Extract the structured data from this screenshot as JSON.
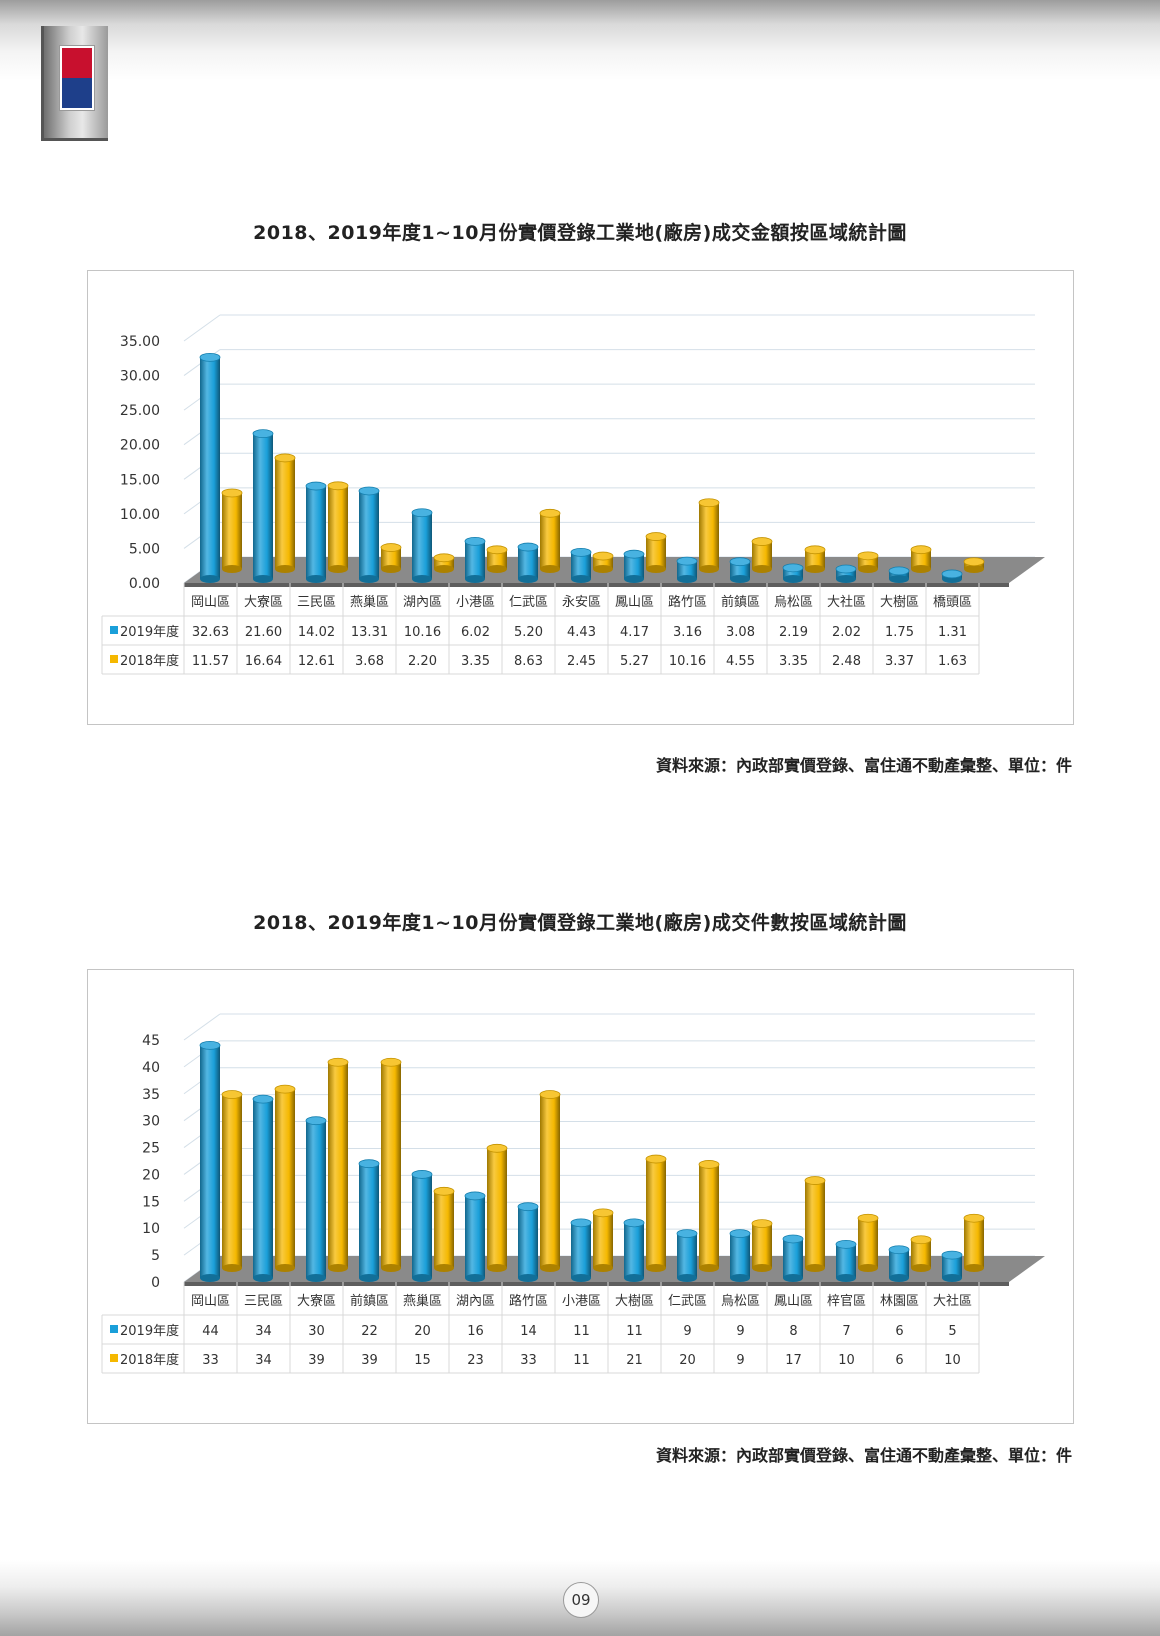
{
  "page_number": "09",
  "charts": [
    {
      "title": "2018、2019年度1~10月份實價登錄工業地(廠房)成交金額按區域統計圖",
      "source": "資料來源：內政部實價登錄、富住通不動產彙整、單位：件"
    },
    {
      "title": "2018、2019年度1~10月份實價登錄工業地(廠房)成交件數按區域統計圖",
      "source": "資料來源：內政部實價登錄、富住通不動產彙整、單位：件"
    }
  ],
  "chart_data": [
    {
      "type": "bar",
      "title": "2018、2019年度1~10月份實價登錄工業地(廠房)成交金額按區域統計圖",
      "categories": [
        "岡山區",
        "大寮區",
        "三民區",
        "燕巢區",
        "湖內區",
        "小港區",
        "仁武區",
        "永安區",
        "鳳山區",
        "路竹區",
        "前鎮區",
        "烏松區",
        "大社區",
        "大樹區",
        "橋頭區"
      ],
      "series": [
        {
          "name": "2019年度",
          "color": "#1a9fd9",
          "values": [
            32.63,
            21.6,
            14.02,
            13.31,
            10.16,
            6.02,
            5.2,
            4.43,
            4.17,
            3.16,
            3.08,
            2.19,
            2.02,
            1.75,
            1.31
          ],
          "labels": [
            "32.63",
            "21.60",
            "14.02",
            "13.31",
            "10.16",
            "6.02",
            "5.20",
            "4.43",
            "4.17",
            "3.16",
            "3.08",
            "2.19",
            "2.02",
            "1.75",
            "1.31"
          ]
        },
        {
          "name": "2018年度",
          "color": "#f5b800",
          "values": [
            11.57,
            16.64,
            12.61,
            3.68,
            2.2,
            3.35,
            8.63,
            2.45,
            5.27,
            10.16,
            4.55,
            3.35,
            2.48,
            3.37,
            1.63
          ],
          "labels": [
            "11.57",
            "16.64",
            "12.61",
            "3.68",
            "2.20",
            "3.35",
            "8.63",
            "2.45",
            "5.27",
            "10.16",
            "4.55",
            "3.35",
            "2.48",
            "3.37",
            "1.63"
          ]
        }
      ],
      "yticks": [
        "0.00",
        "5.00",
        "10.00",
        "15.00",
        "20.00",
        "25.00",
        "30.00",
        "35.00"
      ],
      "ylim": [
        0,
        35
      ],
      "grid": true,
      "legend": "data-table"
    },
    {
      "type": "bar",
      "title": "2018、2019年度1~10月份實價登錄工業地(廠房)成交件數按區域統計圖",
      "categories": [
        "岡山區",
        "三民區",
        "大寮區",
        "前鎮區",
        "燕巢區",
        "湖內區",
        "路竹區",
        "小港區",
        "大樹區",
        "仁武區",
        "烏松區",
        "鳳山區",
        "梓官區",
        "林園區",
        "大社區"
      ],
      "series": [
        {
          "name": "2019年度",
          "color": "#1a9fd9",
          "values": [
            44,
            34,
            30,
            22,
            20,
            16,
            14,
            11,
            11,
            9,
            9,
            8,
            7,
            6,
            5
          ],
          "labels": [
            "44",
            "34",
            "30",
            "22",
            "20",
            "16",
            "14",
            "11",
            "11",
            "9",
            "9",
            "8",
            "7",
            "6",
            "5"
          ]
        },
        {
          "name": "2018年度",
          "color": "#f5b800",
          "values": [
            33,
            34,
            39,
            39,
            15,
            23,
            33,
            11,
            21,
            20,
            9,
            17,
            10,
            6,
            10
          ],
          "labels": [
            "33",
            "34",
            "39",
            "39",
            "15",
            "23",
            "33",
            "11",
            "21",
            "20",
            "9",
            "17",
            "10",
            "6",
            "10"
          ]
        }
      ],
      "yticks": [
        "0",
        "5",
        "10",
        "15",
        "20",
        "25",
        "30",
        "35",
        "40",
        "45"
      ],
      "ylim": [
        0,
        45
      ],
      "grid": true,
      "legend": "data-table"
    }
  ]
}
